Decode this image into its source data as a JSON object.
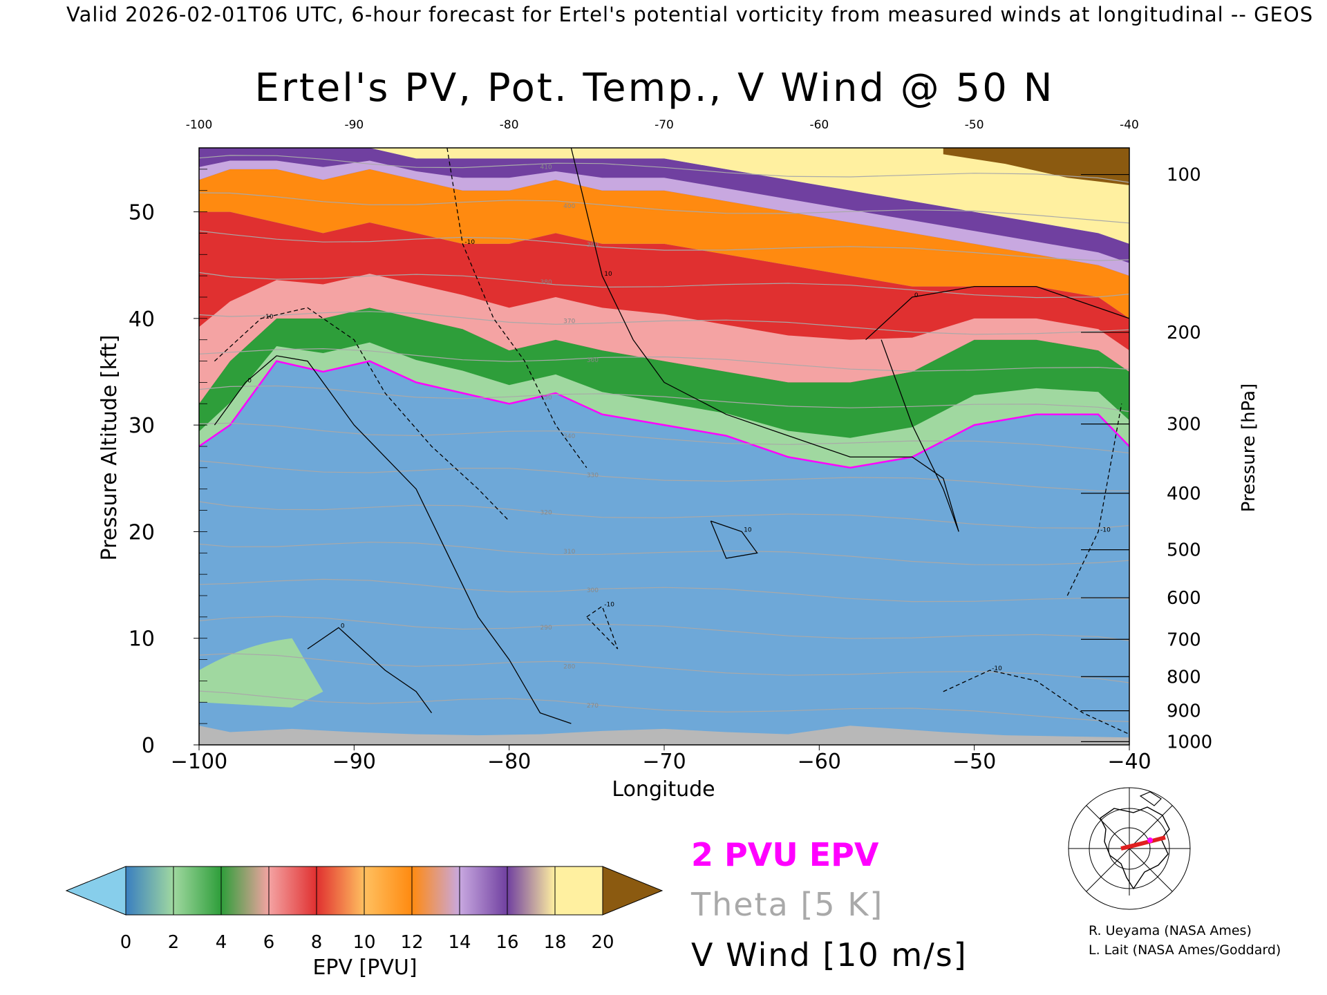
{
  "header": {
    "suptitle": "Valid 2026-02-01T06 UTC, 6-hour forecast for Ertel's potential vorticity from measured winds at longitudinal -- GEOS"
  },
  "chart_data": {
    "type": "heatmap",
    "title": "Ertel's PV, Pot. Temp., V Wind @ 50 N",
    "xlabel": "Longitude",
    "ylabel": "Pressure Altitude [kft]",
    "y2label": "Pressure [hPa]",
    "xlim": [
      -100,
      -40
    ],
    "ylim": [
      0,
      56
    ],
    "x_ticks": [
      -100,
      -90,
      -80,
      -70,
      -60,
      -50,
      -40
    ],
    "x_tick_labels": [
      "−100",
      "−90",
      "−80",
      "−70",
      "−60",
      "−50",
      "−40"
    ],
    "x_top_tick_labels": [
      "-100",
      "-90",
      "-80",
      "-70",
      "-60",
      "-50",
      "-40"
    ],
    "y_ticks": [
      0,
      10,
      20,
      30,
      40,
      50
    ],
    "y_tick_labels": [
      "0",
      "10",
      "20",
      "30",
      "40",
      "50"
    ],
    "pressure_ticks": [
      {
        "label": "100",
        "kft": 53.5
      },
      {
        "label": "200",
        "kft": 38.7
      },
      {
        "label": "300",
        "kft": 30.1
      },
      {
        "label": "400",
        "kft": 23.6
      },
      {
        "label": "500",
        "kft": 18.3
      },
      {
        "label": "600",
        "kft": 13.8
      },
      {
        "label": "700",
        "kft": 9.9
      },
      {
        "label": "800",
        "kft": 6.4
      },
      {
        "label": "900",
        "kft": 3.2
      },
      {
        "label": "1000",
        "kft": 0.3
      }
    ],
    "colorbar": {
      "label": "EPV [PVU]",
      "ticks": [
        "0",
        "2",
        "4",
        "6",
        "8",
        "10",
        "12",
        "14",
        "16",
        "18",
        "20"
      ],
      "colors": [
        "#87ceeb",
        "#3a7fc0",
        "#a0d8a0",
        "#2e9e3a",
        "#f4a3a3",
        "#e03030",
        "#ffc060",
        "#ff8a10",
        "#c8a8e0",
        "#7040a0",
        "#fff0a0",
        "#8b5a10"
      ],
      "under_color": "#87ceeb",
      "over_color": "#8b5a10"
    },
    "epv_layers_kft_by_longitude": {
      "longitude": [
        -100,
        -98,
        -95,
        -92,
        -89,
        -86,
        -83,
        -80,
        -77,
        -74,
        -70,
        -66,
        -62,
        -58,
        -54,
        -50,
        -46,
        -42,
        -40
      ],
      "top_of_blue_2pvu": [
        28,
        30,
        36,
        35,
        36,
        34,
        33,
        32,
        33,
        31,
        30,
        29,
        27,
        26,
        27,
        30,
        31,
        31,
        28
      ],
      "top_of_green_6pvu": [
        32,
        36,
        40,
        40,
        41,
        40,
        39,
        37,
        38,
        37,
        36,
        35,
        34,
        34,
        35,
        38,
        38,
        37,
        35
      ],
      "top_of_red_10pvu": [
        50,
        50,
        49,
        48,
        49,
        48,
        47,
        47,
        48,
        47,
        47,
        46,
        45,
        44,
        43,
        43,
        43,
        42,
        40
      ],
      "top_of_orange_13pvu": [
        53,
        54,
        54,
        53,
        54,
        53,
        52,
        52,
        53,
        52,
        52,
        51,
        50,
        49,
        48,
        47,
        46,
        45,
        44
      ],
      "top_of_purple_17pvu": [
        56,
        56,
        56,
        56,
        56,
        55,
        55,
        55,
        55,
        55,
        55,
        54,
        53,
        52,
        51,
        50,
        49,
        48,
        47
      ]
    },
    "theta_contour_labels": [
      "410",
      "400",
      "390",
      "380",
      "370",
      "360",
      "350",
      "340",
      "330",
      "320",
      "310",
      "300",
      "290",
      "280",
      "270"
    ],
    "v_wind_contour_labels": [
      "0",
      "10",
      "-10"
    ],
    "legend": [
      "2 PVU EPV",
      "Theta [5 K]",
      "V Wind [10 m/s]"
    ],
    "legend_colors": [
      "#ff00ff",
      "#a9a9a9",
      "#000000"
    ]
  },
  "legend": {
    "epv": "2 PVU EPV",
    "theta": "Theta [5 K]",
    "vwind": "V Wind [10 m/s]"
  },
  "credits": {
    "line1": "R. Ueyama (NASA Ames)",
    "line2": "L. Lait (NASA Ames/Goddard)"
  }
}
